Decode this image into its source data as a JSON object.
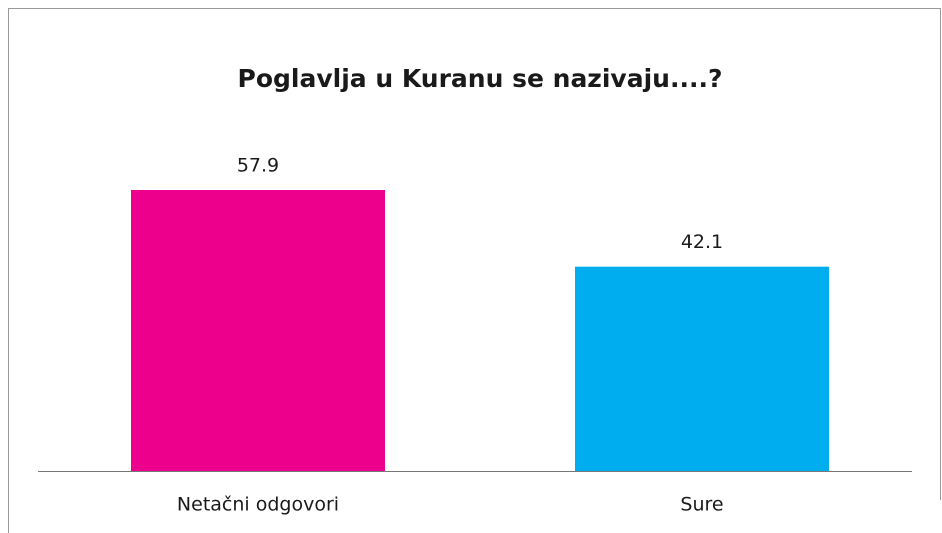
{
  "chart_data": {
    "type": "bar",
    "title": "Poglavlja u Kuranu se nazivaju....?",
    "categories": [
      "Netačni odgovori",
      "Sure"
    ],
    "values": [
      57.9,
      42.1
    ],
    "colors": [
      "#ec008c",
      "#00aeef"
    ]
  }
}
